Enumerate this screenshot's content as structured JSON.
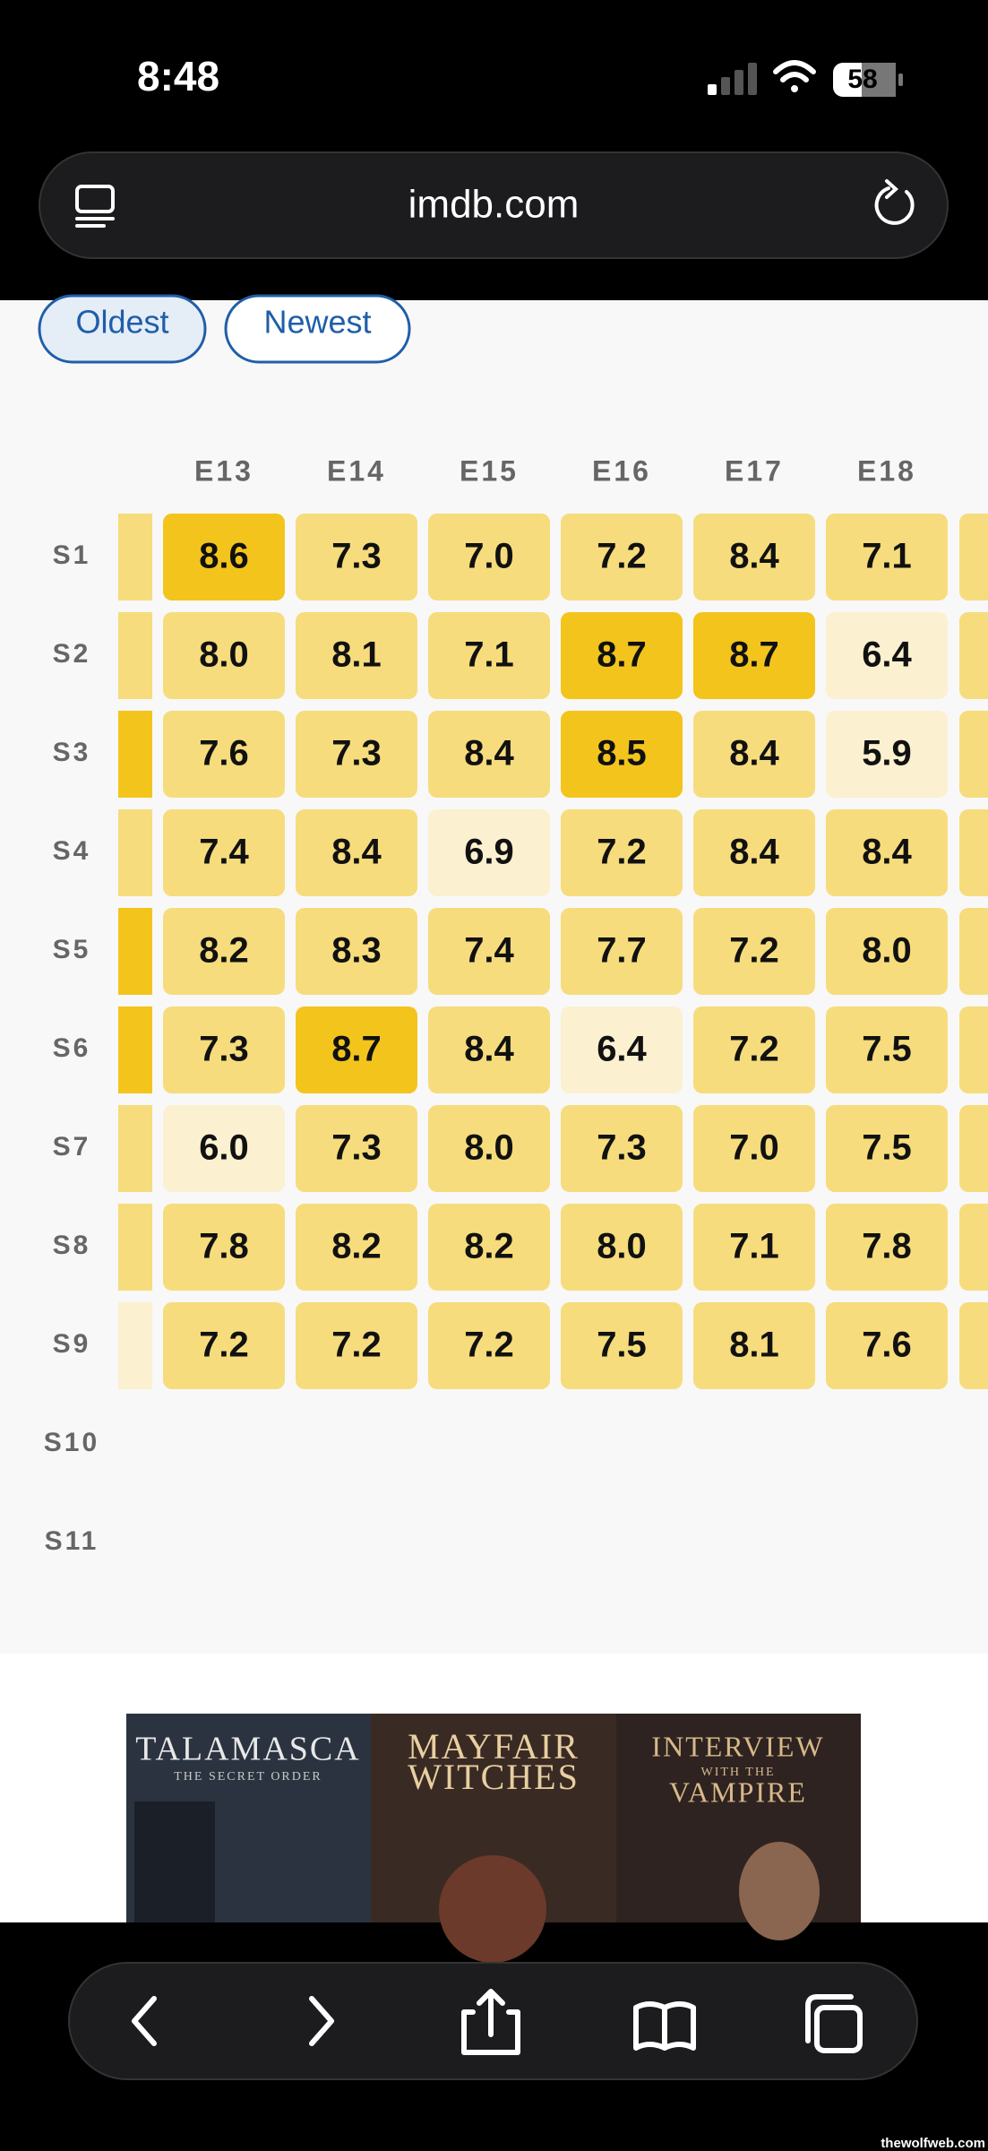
{
  "status_bar": {
    "time": "8:48",
    "battery": "58"
  },
  "address_bar": {
    "url": "imdb.com"
  },
  "sort_buttons": [
    "Oldest",
    "Newest"
  ],
  "ratings_grid": {
    "episodes": [
      "E13",
      "E14",
      "E15",
      "E16",
      "E17",
      "E18"
    ],
    "seasons": [
      "S1",
      "S2",
      "S3",
      "S4",
      "S5",
      "S6",
      "S7",
      "S8",
      "S9",
      "S10",
      "S11"
    ],
    "rows": [
      [
        "8.6",
        "7.3",
        "7.0",
        "7.2",
        "8.4",
        "7.1"
      ],
      [
        "8.0",
        "8.1",
        "7.1",
        "8.7",
        "8.7",
        "6.4"
      ],
      [
        "7.6",
        "7.3",
        "8.4",
        "8.5",
        "8.4",
        "5.9"
      ],
      [
        "7.4",
        "8.4",
        "6.9",
        "7.2",
        "8.4",
        "8.4"
      ],
      [
        "8.2",
        "8.3",
        "7.4",
        "7.7",
        "7.2",
        "8.0"
      ],
      [
        "7.3",
        "8.7",
        "8.4",
        "6.4",
        "7.2",
        "7.5"
      ],
      [
        "6.0",
        "7.3",
        "8.0",
        "7.3",
        "7.0",
        "7.5"
      ],
      [
        "7.8",
        "8.2",
        "8.2",
        "8.0",
        "7.1",
        "7.8"
      ],
      [
        "7.2",
        "7.2",
        "7.2",
        "7.5",
        "8.1",
        "7.6"
      ]
    ]
  },
  "promo": {
    "panels": [
      {
        "lines": [
          "TALAMASCA",
          "THE SECRET ORDER"
        ]
      },
      {
        "lines": [
          "MAYFAIR",
          "WITCHES"
        ]
      },
      {
        "lines": [
          "INTERVIEW",
          "WITH THE",
          "VAMPIRE"
        ]
      }
    ]
  },
  "watermark": "thewolfweb.com"
}
